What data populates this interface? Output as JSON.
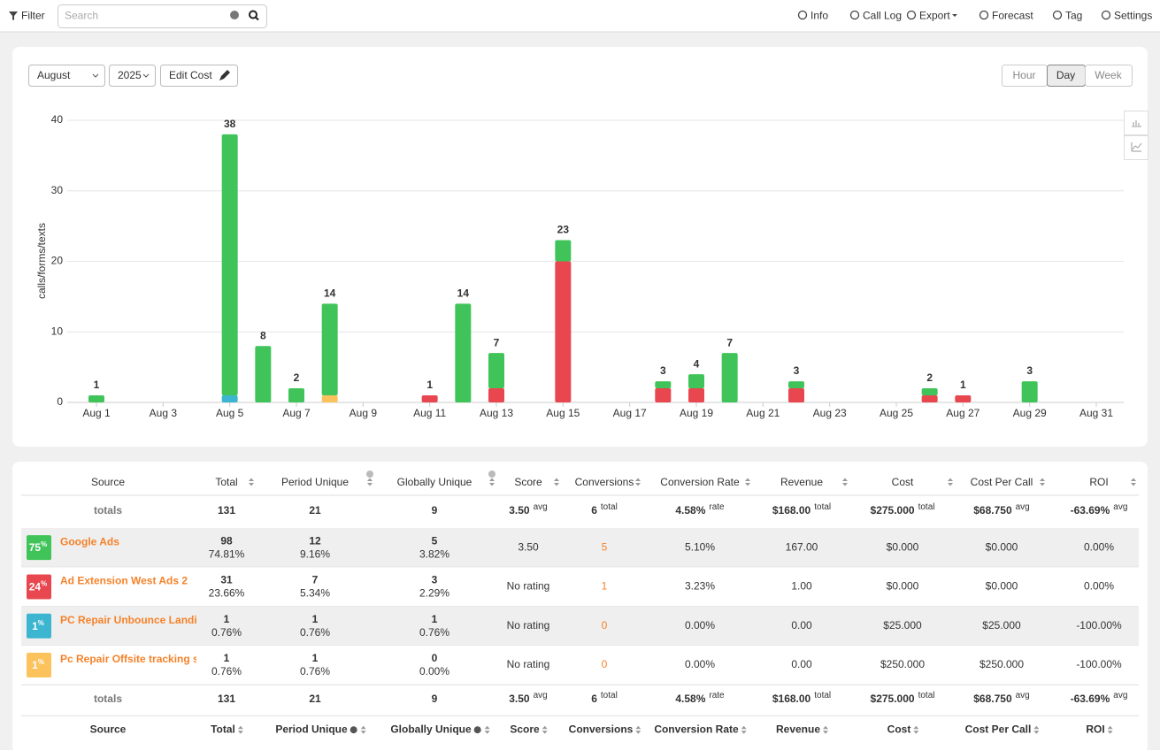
{
  "toolbar": {
    "filter": "Filter",
    "search_placeholder": "Search",
    "menu": [
      "Info",
      "Call Log",
      "Export",
      "Forecast",
      "Tag",
      "Settings"
    ]
  },
  "controls": {
    "month": "August",
    "year": "2025",
    "edit_cost": "Edit Cost",
    "granularity": [
      "Hour",
      "Day",
      "Week"
    ],
    "active": "Day"
  },
  "chart_data": {
    "type": "stacked-bar",
    "y_label": "calls/forms/texts",
    "categories": [
      "Aug 1",
      null,
      "Aug 3",
      null,
      "Aug 5",
      null,
      "Aug 7",
      null,
      "Aug 9",
      null,
      "Aug 11",
      null,
      "Aug 13",
      null,
      "Aug 15",
      null,
      "Aug 17",
      null,
      "Aug 19",
      null,
      "Aug 21",
      null,
      "Aug 23",
      null,
      "Aug 25",
      null,
      "Aug 27",
      null,
      "Aug 29",
      null,
      "Aug 31"
    ],
    "series": [
      {
        "color": "#e8474f",
        "values": [
          0,
          0,
          0,
          0,
          0,
          0,
          0,
          0,
          0,
          0,
          1,
          0,
          2,
          0,
          20,
          0,
          0,
          2,
          2,
          0,
          0,
          2,
          0,
          0,
          0,
          1,
          1,
          0,
          0,
          0,
          0
        ]
      },
      {
        "color": "#3bb5d0",
        "values": [
          0,
          0,
          0,
          0,
          1,
          0,
          0,
          0,
          0,
          0,
          0,
          0,
          0,
          0,
          0,
          0,
          0,
          0,
          0,
          0,
          0,
          0,
          0,
          0,
          0,
          0,
          0,
          0,
          0,
          0,
          0
        ]
      },
      {
        "color": "#fcc35c",
        "values": [
          0,
          0,
          0,
          0,
          0,
          0,
          0,
          1,
          0,
          0,
          0,
          0,
          0,
          0,
          0,
          0,
          0,
          0,
          0,
          0,
          0,
          0,
          0,
          0,
          0,
          0,
          0,
          0,
          0,
          0,
          0
        ]
      },
      {
        "color": "#40c45a",
        "values": [
          1,
          0,
          0,
          0,
          37,
          8,
          2,
          13,
          0,
          0,
          0,
          14,
          5,
          0,
          3,
          0,
          0,
          1,
          2,
          7,
          0,
          1,
          0,
          0,
          0,
          1,
          0,
          0,
          3,
          0,
          0
        ]
      }
    ],
    "totals": [
      1,
      null,
      null,
      null,
      38,
      8,
      2,
      14,
      null,
      null,
      1,
      14,
      7,
      null,
      23,
      null,
      null,
      3,
      4,
      7,
      null,
      3,
      null,
      null,
      null,
      2,
      1,
      null,
      3,
      null,
      null
    ],
    "ylim": [
      0,
      41
    ],
    "yticks": [
      0,
      10,
      20,
      30,
      40
    ],
    "grid": true
  },
  "table": {
    "columns": [
      "Source",
      "Total",
      "Period Unique",
      "Globally Unique",
      "Score",
      "Conversions",
      "Conversion Rate",
      "Revenue",
      "Cost",
      "Cost Per Call",
      "ROI"
    ],
    "totals": [
      [
        "totals"
      ],
      [
        "131"
      ],
      [
        "21"
      ],
      [
        "9"
      ],
      [
        "3.50",
        "avg"
      ],
      [
        "6",
        "total"
      ],
      [
        "4.58%",
        "rate"
      ],
      [
        "$168.00",
        "total"
      ],
      [
        "$275.000",
        "total"
      ],
      [
        "$68.750",
        "avg"
      ],
      [
        "-63.69%",
        "avg"
      ]
    ],
    "rows": [
      {
        "badge": "75",
        "badge_unit": "%",
        "badge_color": "#40c45a",
        "source": "Google Ads",
        "cells": [
          [
            "98",
            "74.81%"
          ],
          [
            "12",
            "9.16%"
          ],
          [
            "5",
            "3.82%"
          ],
          [
            "3.50"
          ],
          [
            "5"
          ],
          [
            "5.10%"
          ],
          [
            "167.00"
          ],
          [
            "$0.000"
          ],
          [
            "$0.000"
          ],
          [
            "0.00%"
          ]
        ]
      },
      {
        "badge": "24",
        "badge_unit": "%",
        "badge_color": "#e8474f",
        "source": "Ad Extension West Ads 2",
        "cells": [
          [
            "31",
            "23.66%"
          ],
          [
            "7",
            "5.34%"
          ],
          [
            "3",
            "2.29%"
          ],
          [
            "No rating"
          ],
          [
            "1"
          ],
          [
            "3.23%"
          ],
          [
            "1.00"
          ],
          [
            "$0.000"
          ],
          [
            "$0.000"
          ],
          [
            "0.00%"
          ]
        ]
      },
      {
        "badge": "1",
        "badge_unit": "%",
        "badge_color": "#3bb5d0",
        "source": "PC Repair Unbounce Landi",
        "cells": [
          [
            "1",
            "0.76%"
          ],
          [
            "1",
            "0.76%"
          ],
          [
            "1",
            "0.76%"
          ],
          [
            "No rating"
          ],
          [
            "0"
          ],
          [
            "0.00%"
          ],
          [
            "0.00"
          ],
          [
            "$25.000"
          ],
          [
            "$25.000"
          ],
          [
            "-100.00%"
          ]
        ]
      },
      {
        "badge": "1",
        "badge_unit": "%",
        "badge_color": "#fcc35c",
        "source": "Pc Repair Offsite tracking s",
        "cells": [
          [
            "1",
            "0.76%"
          ],
          [
            "1",
            "0.76%"
          ],
          [
            "0",
            "0.00%"
          ],
          [
            "No rating"
          ],
          [
            "0"
          ],
          [
            "0.00%"
          ],
          [
            "0.00"
          ],
          [
            "$250.000"
          ],
          [
            "$250.000"
          ],
          [
            "-100.00%"
          ]
        ]
      }
    ]
  }
}
